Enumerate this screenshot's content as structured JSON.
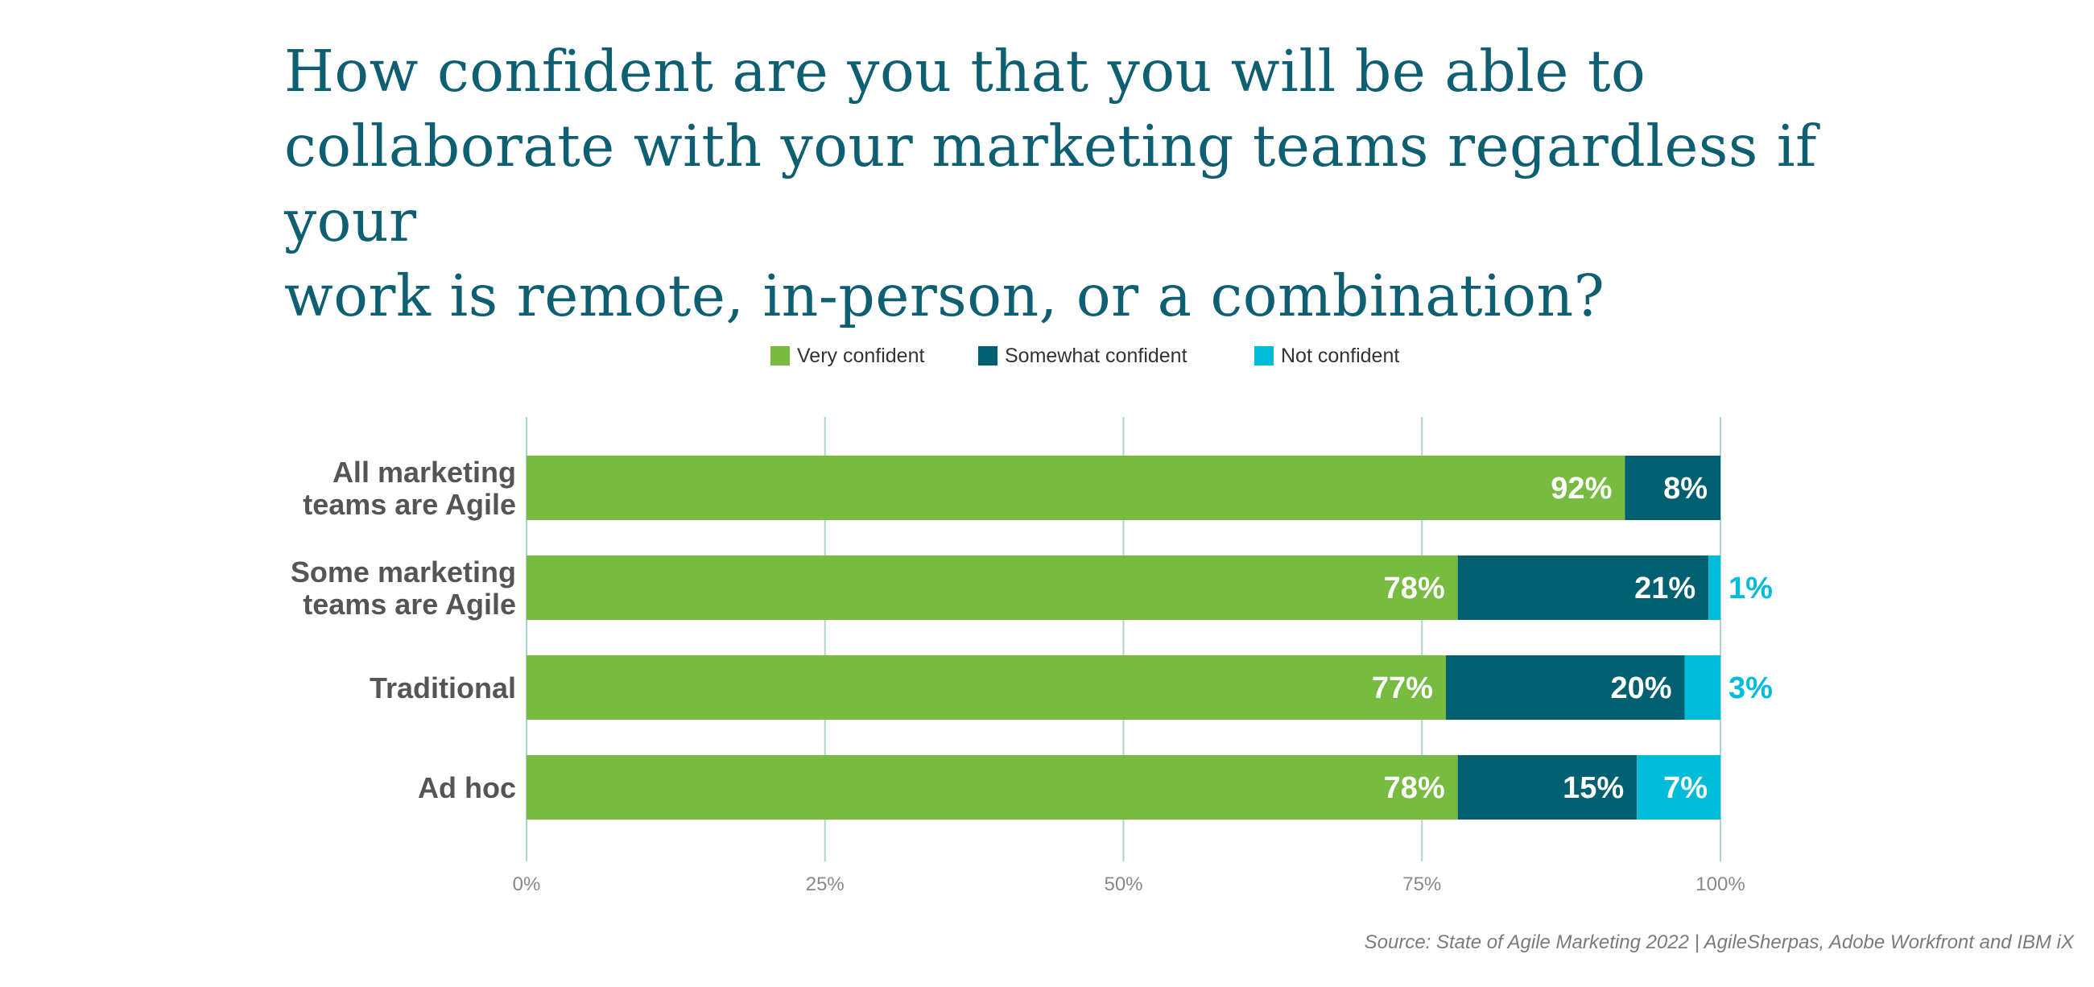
{
  "chart_data": {
    "type": "bar",
    "orientation": "horizontal",
    "stacked": true,
    "title": "How confident are you that you will be able to collaborate with your marketing teams regardless if your work is remote, in-person, or a combination?",
    "title_lines": [
      "How confident are you that you will be able to",
      "collaborate with your marketing teams regardless if your",
      "work is remote, in-person, or a combination?"
    ],
    "categories": [
      [
        "All marketing",
        "teams are Agile"
      ],
      [
        "Some marketing",
        "teams are Agile"
      ],
      [
        "Traditional"
      ],
      [
        "Ad hoc"
      ]
    ],
    "series": [
      {
        "name": "Very confident",
        "color": "#77bb41",
        "values": [
          92,
          78,
          77,
          78
        ],
        "labels": [
          "92%",
          "78%",
          "77%",
          "78%"
        ]
      },
      {
        "name": "Somewhat confident",
        "color": "#00606f",
        "values": [
          8,
          21,
          20,
          15
        ],
        "labels": [
          "8%",
          "21%",
          "20%",
          "15%"
        ]
      },
      {
        "name": "Not confident",
        "color": "#00bcd9",
        "values": [
          0,
          1,
          3,
          7
        ],
        "labels": [
          "",
          "1%",
          "3%",
          "7%"
        ]
      }
    ],
    "xlim": [
      0,
      100
    ],
    "xticks": [
      0,
      25,
      50,
      75,
      100
    ],
    "xtick_labels": [
      "0%",
      "25%",
      "50%",
      "75%",
      "100%"
    ],
    "grid": true,
    "legend_position": "top-center",
    "source": "Source: State of Agile Marketing 2022 | AgileSherpas, Adobe Workfront and IBM iX"
  }
}
